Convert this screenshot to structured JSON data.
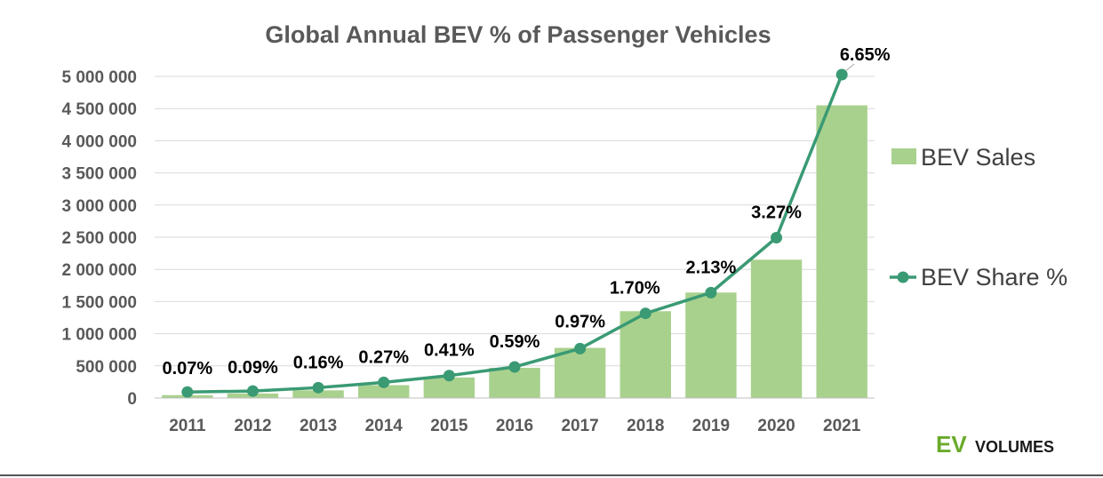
{
  "chart_data": {
    "type": "bar",
    "title": "Global Annual BEV % of Passenger Vehicles",
    "xlabel": "",
    "ylabel": "",
    "ylim": [
      0,
      5000000
    ],
    "yticks": [
      0,
      500000,
      1000000,
      1500000,
      2000000,
      2500000,
      3000000,
      3500000,
      4000000,
      4500000,
      5000000
    ],
    "ytick_labels": [
      "0",
      "500 000",
      "1 000 000",
      "1 500 000",
      "2 000 000",
      "2 500 000",
      "3 000 000",
      "3 500 000",
      "4 000 000",
      "4 500 000",
      "5 000 000"
    ],
    "categories": [
      "2011",
      "2012",
      "2013",
      "2014",
      "2015",
      "2016",
      "2017",
      "2018",
      "2019",
      "2020",
      "2021"
    ],
    "series": [
      {
        "name": "BEV Sales",
        "kind": "bar",
        "color": "#a9d18e",
        "values": [
          45000,
          70000,
          120000,
          200000,
          320000,
          470000,
          780000,
          1350000,
          1640000,
          2150000,
          4550000
        ]
      },
      {
        "name": "BEV Share %",
        "kind": "line",
        "color": "#3a9a74",
        "values": [
          0.07,
          0.09,
          0.16,
          0.27,
          0.41,
          0.59,
          0.97,
          1.7,
          2.13,
          3.27,
          6.65
        ],
        "labels": [
          "0.07%",
          "0.09%",
          "0.16%",
          "0.27%",
          "0.41%",
          "0.59%",
          "0.97%",
          "1.70%",
          "2.13%",
          "3.27%",
          "6.65%"
        ]
      }
    ],
    "grid": true,
    "legend_position": "right"
  },
  "brand": {
    "ev": "EV",
    "volumes": "VOLUMES"
  }
}
